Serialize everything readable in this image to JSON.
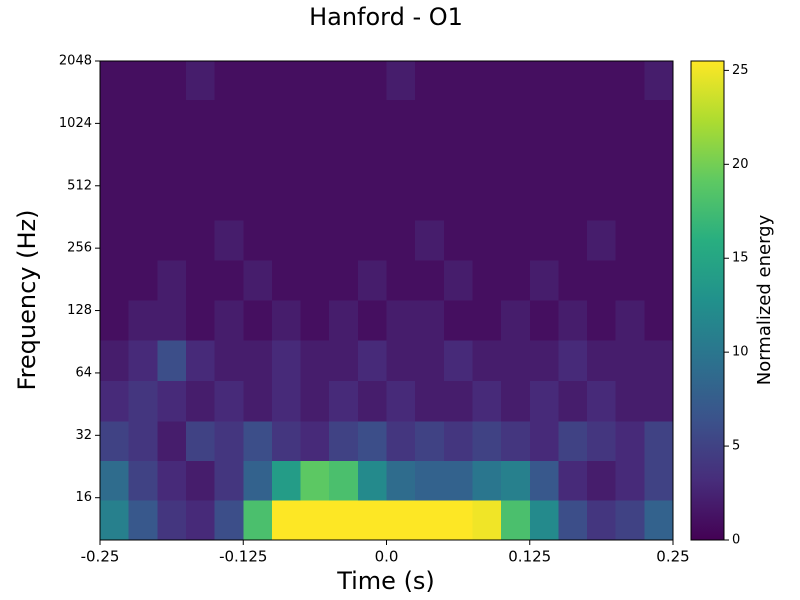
{
  "chart_data": {
    "type": "heatmap",
    "title": "Hanford - O1",
    "xlabel": "Time (s)",
    "ylabel": "Frequency (Hz)",
    "colorbar_label": "Normalized energy",
    "colormap": "viridis",
    "yscale": "log2",
    "xlim": [
      -0.25,
      0.25
    ],
    "xticks": [
      -0.25,
      -0.125,
      {
        "value": 0,
        "label": "0.0"
      },
      0.125,
      0.25
    ],
    "ylim": [
      10,
      2048
    ],
    "yticks": [
      16,
      32,
      64,
      128,
      256,
      512,
      1024,
      2048
    ],
    "clim": [
      0,
      25.5
    ],
    "cticks": [
      0,
      5,
      10,
      15,
      20,
      25
    ],
    "x": [
      -0.2375,
      -0.2125,
      -0.1875,
      -0.1625,
      -0.1375,
      -0.1125,
      -0.0875,
      -0.0625,
      -0.0375,
      -0.0125,
      0.0125,
      0.0375,
      0.0625,
      0.0875,
      0.1125,
      0.1375,
      0.1625,
      0.1875,
      0.2125,
      0.2375
    ],
    "y": [
      12.5,
      19.5,
      30,
      47,
      74,
      115,
      180,
      280,
      440,
      680,
      1070,
      1660
    ],
    "z": [
      [
        11,
        7,
        4,
        3,
        6,
        18,
        25.5,
        25.5,
        25.5,
        25.5,
        25.5,
        25.5,
        25.5,
        25,
        18,
        12,
        6,
        4,
        5,
        8
      ],
      [
        9,
        5,
        3,
        2,
        4,
        8,
        14,
        19,
        18,
        12,
        9,
        8,
        8,
        10,
        11,
        7,
        3,
        2,
        3,
        5
      ],
      [
        5,
        4,
        2,
        5,
        4,
        6,
        4,
        3,
        5,
        6,
        4,
        5,
        4,
        5,
        4,
        3,
        5,
        4,
        3,
        5
      ],
      [
        3,
        4,
        3,
        2,
        3,
        2,
        3,
        2,
        3,
        2,
        3,
        2,
        2,
        3,
        2,
        3,
        2,
        3,
        2,
        2
      ],
      [
        2,
        3,
        6,
        3,
        2,
        2,
        3,
        2,
        2,
        3,
        2,
        2,
        3,
        2,
        2,
        2,
        3,
        2,
        2,
        2
      ],
      [
        1,
        2,
        2,
        1,
        2,
        1,
        2,
        1,
        2,
        1,
        2,
        2,
        1,
        1,
        2,
        1,
        2,
        1,
        2,
        1
      ],
      [
        1,
        1,
        2,
        1,
        1,
        2,
        1,
        1,
        1,
        2,
        1,
        1,
        2,
        1,
        1,
        2,
        1,
        1,
        1,
        1
      ],
      [
        1,
        1,
        1,
        1,
        2,
        1,
        1,
        1,
        1,
        1,
        1,
        2,
        1,
        1,
        1,
        1,
        1,
        2,
        1,
        1
      ],
      [
        1,
        1,
        1,
        1,
        1,
        1,
        1,
        1,
        1,
        1,
        1,
        1,
        1,
        1,
        1,
        1,
        1,
        1,
        1,
        1
      ],
      [
        1,
        1,
        1,
        1,
        1,
        1,
        1,
        1,
        1,
        1,
        1,
        1,
        1,
        1,
        1,
        1,
        1,
        1,
        1,
        1
      ],
      [
        1,
        1,
        1,
        1,
        1,
        1,
        1,
        1,
        1,
        1,
        1,
        1,
        1,
        1,
        1,
        1,
        1,
        1,
        1,
        1
      ],
      [
        1,
        1,
        1,
        2,
        1,
        1,
        1,
        1,
        1,
        1,
        2,
        1,
        1,
        1,
        1,
        1,
        1,
        1,
        1,
        2
      ]
    ]
  }
}
